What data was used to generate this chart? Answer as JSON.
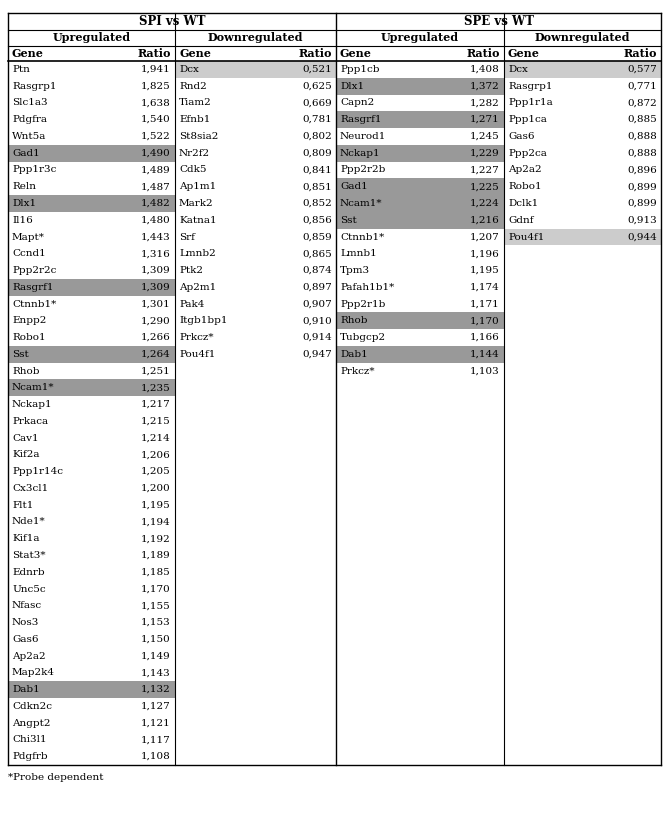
{
  "spi_up": [
    [
      "Ptn",
      "1,941",
      false
    ],
    [
      "Rasgrp1",
      "1,825",
      false
    ],
    [
      "Slc1a3",
      "1,638",
      false
    ],
    [
      "Pdgfra",
      "1,540",
      false
    ],
    [
      "Wnt5a",
      "1,522",
      false
    ],
    [
      "Gad1",
      "1,490",
      true
    ],
    [
      "Ppp1r3c",
      "1,489",
      false
    ],
    [
      "Reln",
      "1,487",
      false
    ],
    [
      "Dlx1",
      "1,482",
      true
    ],
    [
      "Il16",
      "1,480",
      false
    ],
    [
      "Mapt*",
      "1,443",
      false
    ],
    [
      "Ccnd1",
      "1,316",
      false
    ],
    [
      "Ppp2r2c",
      "1,309",
      false
    ],
    [
      "Rasgrf1",
      "1,309",
      true
    ],
    [
      "Ctnnb1*",
      "1,301",
      false
    ],
    [
      "Enpp2",
      "1,290",
      false
    ],
    [
      "Robo1",
      "1,266",
      false
    ],
    [
      "Sst",
      "1,264",
      true
    ],
    [
      "Rhob",
      "1,251",
      false
    ],
    [
      "Ncam1*",
      "1,235",
      true
    ],
    [
      "Nckap1",
      "1,217",
      false
    ],
    [
      "Prkaca",
      "1,215",
      false
    ],
    [
      "Cav1",
      "1,214",
      false
    ],
    [
      "Kif2a",
      "1,206",
      false
    ],
    [
      "Ppp1r14c",
      "1,205",
      false
    ],
    [
      "Cx3cl1",
      "1,200",
      false
    ],
    [
      "Flt1",
      "1,195",
      false
    ],
    [
      "Nde1*",
      "1,194",
      false
    ],
    [
      "Kif1a",
      "1,192",
      false
    ],
    [
      "Stat3*",
      "1,189",
      false
    ],
    [
      "Ednrb",
      "1,185",
      false
    ],
    [
      "Unc5c",
      "1,170",
      false
    ],
    [
      "Nfasc",
      "1,155",
      false
    ],
    [
      "Nos3",
      "1,153",
      false
    ],
    [
      "Gas6",
      "1,150",
      false
    ],
    [
      "Ap2a2",
      "1,149",
      false
    ],
    [
      "Map2k4",
      "1,143",
      false
    ],
    [
      "Dab1",
      "1,132",
      true
    ],
    [
      "Cdkn2c",
      "1,127",
      false
    ],
    [
      "Angpt2",
      "1,121",
      false
    ],
    [
      "Chi3l1",
      "1,117",
      false
    ],
    [
      "Pdgfrb",
      "1,108",
      false
    ]
  ],
  "spi_down": [
    [
      "Dcx",
      "0,521",
      "light"
    ],
    [
      "Rnd2",
      "0,625",
      false
    ],
    [
      "Tiam2",
      "0,669",
      false
    ],
    [
      "Efnb1",
      "0,781",
      false
    ],
    [
      "St8sia2",
      "0,802",
      false
    ],
    [
      "Nr2f2",
      "0,809",
      false
    ],
    [
      "Cdk5",
      "0,841",
      false
    ],
    [
      "Ap1m1",
      "0,851",
      false
    ],
    [
      "Mark2",
      "0,852",
      false
    ],
    [
      "Katna1",
      "0,856",
      false
    ],
    [
      "Srf",
      "0,859",
      false
    ],
    [
      "Lmnb2",
      "0,865",
      false
    ],
    [
      "Ptk2",
      "0,874",
      false
    ],
    [
      "Ap2m1",
      "0,897",
      false
    ],
    [
      "Pak4",
      "0,907",
      false
    ],
    [
      "Itgb1bp1",
      "0,910",
      false
    ],
    [
      "Prkcz*",
      "0,914",
      false
    ],
    [
      "Pou4f1",
      "0,947",
      false
    ]
  ],
  "spe_up": [
    [
      "Ppp1cb",
      "1,408",
      false
    ],
    [
      "Dlx1",
      "1,372",
      true
    ],
    [
      "Capn2",
      "1,282",
      false
    ],
    [
      "Rasgrf1",
      "1,271",
      true
    ],
    [
      "Neurod1",
      "1,245",
      false
    ],
    [
      "Nckap1",
      "1,229",
      true
    ],
    [
      "Ppp2r2b",
      "1,227",
      false
    ],
    [
      "Gad1",
      "1,225",
      true
    ],
    [
      "Ncam1*",
      "1,224",
      true
    ],
    [
      "Sst",
      "1,216",
      true
    ],
    [
      "Ctnnb1*",
      "1,207",
      false
    ],
    [
      "Lmnb1",
      "1,196",
      false
    ],
    [
      "Tpm3",
      "1,195",
      false
    ],
    [
      "Pafah1b1*",
      "1,174",
      false
    ],
    [
      "Ppp2r1b",
      "1,171",
      false
    ],
    [
      "Rhob",
      "1,170",
      true
    ],
    [
      "Tubgcp2",
      "1,166",
      false
    ],
    [
      "Dab1",
      "1,144",
      true
    ],
    [
      "Prkcz*",
      "1,103",
      false
    ]
  ],
  "spe_down": [
    [
      "Dcx",
      "0,577",
      "light"
    ],
    [
      "Rasgrp1",
      "0,771",
      false
    ],
    [
      "Ppp1r1a",
      "0,872",
      false
    ],
    [
      "Ppp1ca",
      "0,885",
      false
    ],
    [
      "Gas6",
      "0,888",
      false
    ],
    [
      "Ppp2ca",
      "0,888",
      false
    ],
    [
      "Ap2a2",
      "0,896",
      false
    ],
    [
      "Robo1",
      "0,899",
      false
    ],
    [
      "Dclk1",
      "0,899",
      false
    ],
    [
      "Gdnf",
      "0,913",
      false
    ],
    [
      "Pou4f1",
      "0,944",
      "light"
    ]
  ],
  "dark_gray": "#999999",
  "light_gray": "#cccccc",
  "footnote": "*Probe dependent",
  "font_size": 7.5,
  "header_font_size": 8.0,
  "title_font_size": 8.5
}
